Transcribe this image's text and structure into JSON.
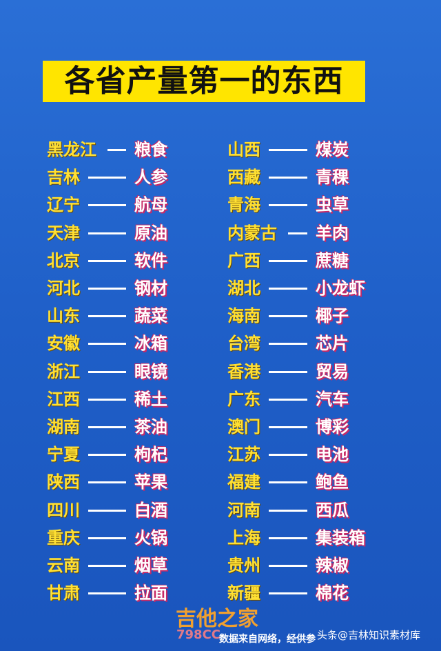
{
  "title": "各省产量第一的东西",
  "rows": [
    [
      "黑龙江",
      "粮食",
      "山西",
      "煤炭"
    ],
    [
      "吉林",
      "人参",
      "西藏",
      "青稞"
    ],
    [
      "辽宁",
      "航母",
      "青海",
      "虫草"
    ],
    [
      "天津",
      "原油",
      "内蒙古",
      "羊肉"
    ],
    [
      "北京",
      "软件",
      "广西",
      "蔗糖"
    ],
    [
      "河北",
      "钢材",
      "湖北",
      "小龙虾"
    ],
    [
      "山东",
      "蔬菜",
      "海南",
      "椰子"
    ],
    [
      "安徽",
      "冰箱",
      "台湾",
      "芯片"
    ],
    [
      "浙江",
      "眼镜",
      "香港",
      "贸易"
    ],
    [
      "江西",
      "稀土",
      "广东",
      "汽车"
    ],
    [
      "湖南",
      "茶油",
      "澳门",
      "博彩"
    ],
    [
      "宁夏",
      "枸杞",
      "江苏",
      "电池"
    ],
    [
      "陕西",
      "苹果",
      "福建",
      "鲍鱼"
    ],
    [
      "四川",
      "白酒",
      "河南",
      "西瓜"
    ],
    [
      "重庆",
      "火锅",
      "上海",
      "集装箱"
    ],
    [
      "云南",
      "烟草",
      "贵州",
      "辣椒"
    ],
    [
      "甘肃",
      "拉面",
      "新疆",
      "棉花"
    ]
  ],
  "footer": {
    "note": "数据来自网络，经供参",
    "watermark": "吉他之家",
    "watermark_sub": "798CC",
    "source": "头条@吉林知识素材库"
  }
}
